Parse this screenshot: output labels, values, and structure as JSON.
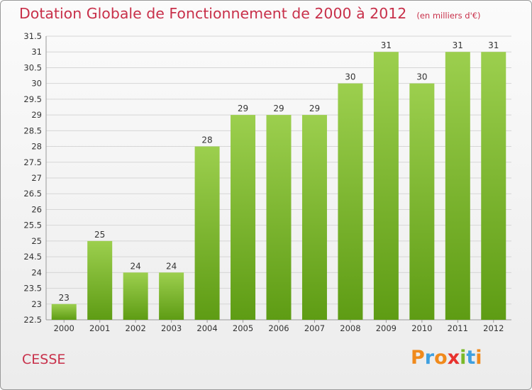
{
  "header": {
    "title": "Dotation Globale de Fonctionnement de 2000 à 2012",
    "unit": "(en milliers d'€)"
  },
  "footer": {
    "place": "CESSE",
    "logo_text": "Proxiti"
  },
  "colors": {
    "bar_top": "#9ccf4e",
    "bar_bottom": "#5e9c14",
    "title": "#c8304a",
    "logo": [
      "#f08a1c",
      "#3fa0e0",
      "#f08a1c",
      "#e8322e",
      "#7ab92a",
      "#3fa0e0",
      "#f08a1c"
    ]
  },
  "chart_data": {
    "type": "bar",
    "categories": [
      "2000",
      "2001",
      "2002",
      "2003",
      "2004",
      "2005",
      "2006",
      "2007",
      "2008",
      "2009",
      "2010",
      "2011",
      "2012"
    ],
    "values": [
      23,
      25,
      24,
      24,
      28,
      29,
      29,
      29,
      30,
      31,
      30,
      31,
      31
    ],
    "ylim": [
      22.5,
      31.5
    ],
    "yticks": [
      22.5,
      23,
      23.5,
      24,
      24.5,
      25,
      25.5,
      26,
      26.5,
      27,
      27.5,
      28,
      28.5,
      29,
      29.5,
      30,
      30.5,
      31,
      31.5
    ],
    "grid": true,
    "data_labels": true
  }
}
